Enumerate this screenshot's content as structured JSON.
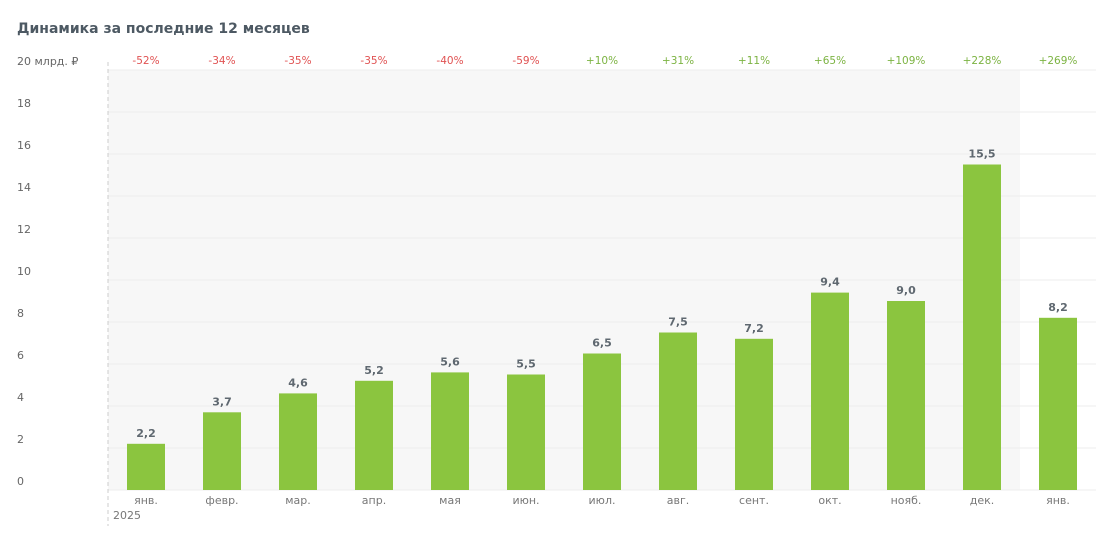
{
  "chart_data": {
    "type": "bar",
    "title": "Динамика за последние 12 месяцев",
    "categories": [
      "янв.",
      "февр.",
      "мар.",
      "апр.",
      "мая",
      "июн.",
      "июл.",
      "авг.",
      "сент.",
      "окт.",
      "нояб.",
      "дек.",
      "янв."
    ],
    "year_label": "2025",
    "values": [
      2.2,
      3.7,
      4.6,
      5.2,
      5.6,
      5.5,
      6.5,
      7.5,
      7.2,
      9.4,
      9.0,
      15.5,
      8.2
    ],
    "value_labels": [
      "2,2",
      "3,7",
      "4,6",
      "5,2",
      "5,6",
      "5,5",
      "6,5",
      "7,5",
      "7,2",
      "9,4",
      "9,0",
      "15,5",
      "8,2"
    ],
    "changes": [
      -52,
      -34,
      -35,
      -35,
      -40,
      -59,
      10,
      31,
      11,
      65,
      109,
      228,
      269
    ],
    "change_labels": [
      "-52%",
      "-34%",
      "-35%",
      "-35%",
      "-40%",
      "-59%",
      "+10%",
      "+31%",
      "+11%",
      "+65%",
      "+109%",
      "+228%",
      "+269%"
    ],
    "up_color": "#7cb342",
    "down_color": "#e05252",
    "color": "#8bc53f",
    "ylim": [
      0,
      20
    ],
    "yticks": [
      0,
      2,
      4,
      6,
      8,
      10,
      12,
      14,
      16,
      18,
      {
        "value": 20,
        "label": "20 млрд. ₽"
      }
    ],
    "grid": true
  }
}
